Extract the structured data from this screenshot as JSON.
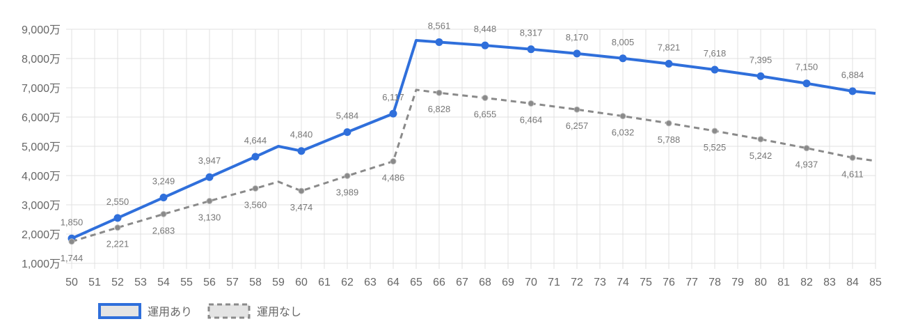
{
  "chart_data": {
    "type": "line",
    "title": "",
    "xlabel": "",
    "ylabel": "",
    "xlim": [
      50,
      85
    ],
    "ylim": [
      1000,
      9000
    ],
    "y_unit_suffix": "万",
    "grid": true,
    "legend_position": "bottom-left",
    "x_ticks": [
      "50",
      "51",
      "52",
      "53",
      "54",
      "55",
      "56",
      "57",
      "58",
      "59",
      "60",
      "61",
      "62",
      "63",
      "64",
      "65",
      "66",
      "67",
      "68",
      "69",
      "70",
      "71",
      "72",
      "73",
      "74",
      "75",
      "76",
      "77",
      "78",
      "79",
      "80",
      "81",
      "82",
      "83",
      "84",
      "85"
    ],
    "y_ticks": [
      "1,000万",
      "2,000万",
      "3,000万",
      "4,000万",
      "5,000万",
      "6,000万",
      "7,000万",
      "8,000万",
      "9,000万"
    ],
    "series": [
      {
        "name": "運用あり",
        "color": "#2f6fdb",
        "dashed": false,
        "x": [
          50,
          52,
          54,
          56,
          58,
          59,
          60,
          62,
          64,
          65,
          66,
          68,
          70,
          72,
          74,
          76,
          78,
          80,
          82,
          84,
          85
        ],
        "values": [
          1850,
          2550,
          3249,
          3947,
          4644,
          5000,
          4840,
          5484,
          6117,
          8620,
          8561,
          8448,
          8317,
          8170,
          8005,
          7821,
          7618,
          7395,
          7150,
          6884,
          6810
        ],
        "labeled_points": [
          {
            "x": 50,
            "label": "1,850"
          },
          {
            "x": 52,
            "label": "2,550"
          },
          {
            "x": 54,
            "label": "3,249"
          },
          {
            "x": 56,
            "label": "3,947"
          },
          {
            "x": 58,
            "label": "4,644"
          },
          {
            "x": 60,
            "label": "4,840"
          },
          {
            "x": 62,
            "label": "5,484"
          },
          {
            "x": 64,
            "label": "6,117"
          },
          {
            "x": 66,
            "label": "8,561"
          },
          {
            "x": 68,
            "label": "8,448"
          },
          {
            "x": 70,
            "label": "8,317"
          },
          {
            "x": 72,
            "label": "8,170"
          },
          {
            "x": 74,
            "label": "8,005"
          },
          {
            "x": 76,
            "label": "7,821"
          },
          {
            "x": 78,
            "label": "7,618"
          },
          {
            "x": 80,
            "label": "7,395"
          },
          {
            "x": 82,
            "label": "7,150"
          },
          {
            "x": 84,
            "label": "6,884"
          }
        ]
      },
      {
        "name": "運用なし",
        "color": "#8a8a8a",
        "dashed": true,
        "x": [
          50,
          52,
          54,
          56,
          58,
          59,
          60,
          62,
          64,
          65,
          66,
          68,
          70,
          72,
          74,
          76,
          78,
          80,
          82,
          84,
          85
        ],
        "values": [
          1744,
          2221,
          2683,
          3130,
          3560,
          3790,
          3474,
          3989,
          4486,
          6930,
          6828,
          6655,
          6464,
          6257,
          6032,
          5788,
          5525,
          5242,
          4937,
          4611,
          4500
        ],
        "labeled_points": [
          {
            "x": 50,
            "label": "1,744"
          },
          {
            "x": 52,
            "label": "2,221"
          },
          {
            "x": 54,
            "label": "2,683"
          },
          {
            "x": 56,
            "label": "3,130"
          },
          {
            "x": 58,
            "label": "3,560"
          },
          {
            "x": 60,
            "label": "3,474"
          },
          {
            "x": 62,
            "label": "3,989"
          },
          {
            "x": 64,
            "label": "4,486"
          },
          {
            "x": 66,
            "label": "6,828"
          },
          {
            "x": 68,
            "label": "6,655"
          },
          {
            "x": 70,
            "label": "6,464"
          },
          {
            "x": 72,
            "label": "6,257"
          },
          {
            "x": 74,
            "label": "6,032"
          },
          {
            "x": 76,
            "label": "5,788"
          },
          {
            "x": 78,
            "label": "5,525"
          },
          {
            "x": 80,
            "label": "5,242"
          },
          {
            "x": 82,
            "label": "4,937"
          },
          {
            "x": 84,
            "label": "4,611"
          }
        ]
      }
    ]
  }
}
